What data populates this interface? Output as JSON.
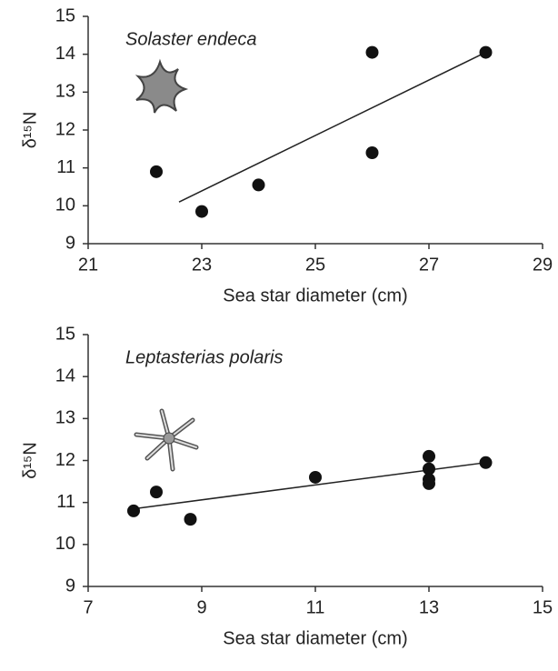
{
  "chart_data": [
    {
      "type": "scatter",
      "annotation": "Solaster endeca",
      "xlabel": "Sea star diameter (cm)",
      "ylabel": "δ¹⁵N",
      "x": [
        22.2,
        23,
        24,
        26,
        26,
        28
      ],
      "y": [
        10.9,
        9.85,
        10.55,
        14.05,
        11.4,
        14.05
      ],
      "color": "#111111",
      "trendline": {
        "x": [
          22.6,
          28
        ],
        "y": [
          10.1,
          14.05
        ]
      },
      "xlim": [
        21,
        29
      ],
      "xticks": [
        21,
        23,
        25,
        27,
        29
      ],
      "ylim": [
        9,
        15
      ],
      "yticks": [
        9,
        10,
        11,
        12,
        13,
        14,
        15
      ]
    },
    {
      "type": "scatter",
      "annotation": "Leptasterias polaris",
      "xlabel": "Sea star diameter (cm)",
      "ylabel": "δ¹⁵N",
      "x": [
        7.8,
        8.2,
        8.8,
        11,
        13,
        13,
        13,
        13,
        14
      ],
      "y": [
        10.8,
        11.25,
        10.6,
        11.6,
        12.1,
        11.8,
        11.55,
        11.45,
        11.95
      ],
      "color": "#111111",
      "trendline": {
        "x": [
          7.8,
          14
        ],
        "y": [
          10.85,
          11.95
        ]
      },
      "xlim": [
        7,
        15
      ],
      "xticks": [
        7,
        9,
        11,
        13,
        15
      ],
      "ylim": [
        9,
        15
      ],
      "yticks": [
        9,
        10,
        11,
        12,
        13,
        14,
        15
      ]
    }
  ]
}
